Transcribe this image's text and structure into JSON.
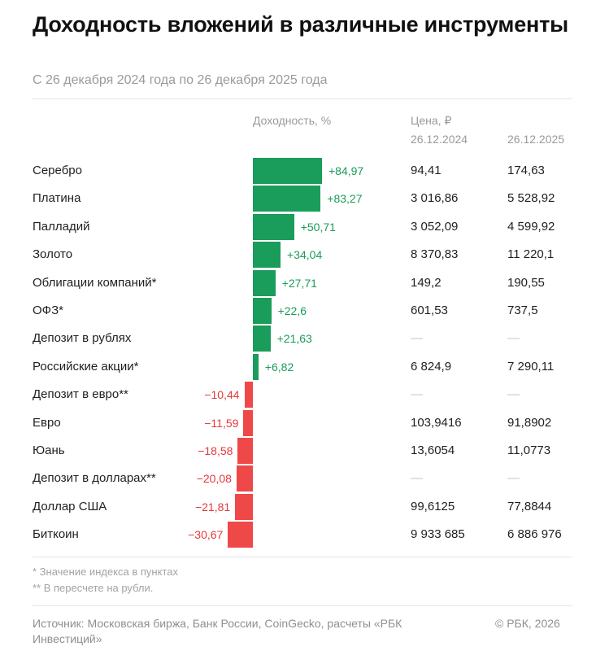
{
  "title": "Доходность вложений в различные инструменты",
  "subtitle": "С 26 декабря 2024 года по 26 декабря 2025 года",
  "headers": {
    "yield": "Доходность, %",
    "price": "Цена, ₽",
    "date1": "26.12.2024",
    "date2": "26.12.2025"
  },
  "notes": {
    "note1": "* Значение индекса в пунктах",
    "note2": "** В пересчете на рубли."
  },
  "source": "Источник: Московская биржа, Банк России, CoinGecko, расчеты «РБК Инвестиций»",
  "copyright": "© РБК, 2026",
  "colors": {
    "positive_bar": "#1a9c5a",
    "positive_text": "#1a9c5a",
    "negative_bar": "#ef4848",
    "negative_text": "#e5383b"
  },
  "chart_data": {
    "type": "bar",
    "orientation": "horizontal",
    "title": "Доходность вложений в различные инструменты",
    "subtitle": "С 26 декабря 2024 года по 26 декабря 2025 года",
    "value_label": "Доходность, %",
    "xlim": [
      -30.67,
      84.97
    ],
    "rows": [
      {
        "name": "Серебро",
        "value": 84.97,
        "label": "+84,97",
        "price_2024": "94,41",
        "price_2025": "174,63"
      },
      {
        "name": "Платина",
        "value": 83.27,
        "label": "+83,27",
        "price_2024": "3 016,86",
        "price_2025": "5 528,92"
      },
      {
        "name": "Палладий",
        "value": 50.71,
        "label": "+50,71",
        "price_2024": "3 052,09",
        "price_2025": "4 599,92"
      },
      {
        "name": "Золото",
        "value": 34.04,
        "label": "+34,04",
        "price_2024": "8 370,83",
        "price_2025": "11 220,1"
      },
      {
        "name": "Облигации компаний*",
        "value": 27.71,
        "label": "+27,71",
        "price_2024": "149,2",
        "price_2025": "190,55"
      },
      {
        "name": "ОФЗ*",
        "value": 22.6,
        "label": "+22,6",
        "price_2024": "601,53",
        "price_2025": "737,5"
      },
      {
        "name": "Депозит в рублях",
        "value": 21.63,
        "label": "+21,63",
        "price_2024": "—",
        "price_2025": "—"
      },
      {
        "name": "Российские акции*",
        "value": 6.82,
        "label": "+6,82",
        "price_2024": "6 824,9",
        "price_2025": "7 290,11"
      },
      {
        "name": "Депозит в евро**",
        "value": -10.44,
        "label": "−10,44",
        "price_2024": "—",
        "price_2025": "—"
      },
      {
        "name": "Евро",
        "value": -11.59,
        "label": "−11,59",
        "price_2024": "103,9416",
        "price_2025": "91,8902"
      },
      {
        "name": "Юань",
        "value": -18.58,
        "label": "−18,58",
        "price_2024": "13,6054",
        "price_2025": "11,0773"
      },
      {
        "name": "Депозит в долларах**",
        "value": -20.08,
        "label": "−20,08",
        "price_2024": "—",
        "price_2025": "—"
      },
      {
        "name": "Доллар США",
        "value": -21.81,
        "label": "−21,81",
        "price_2024": "99,6125",
        "price_2025": "77,8844"
      },
      {
        "name": "Биткоин",
        "value": -30.67,
        "label": "−30,67",
        "price_2024": "9 933 685",
        "price_2025": "6 886 976"
      }
    ]
  }
}
